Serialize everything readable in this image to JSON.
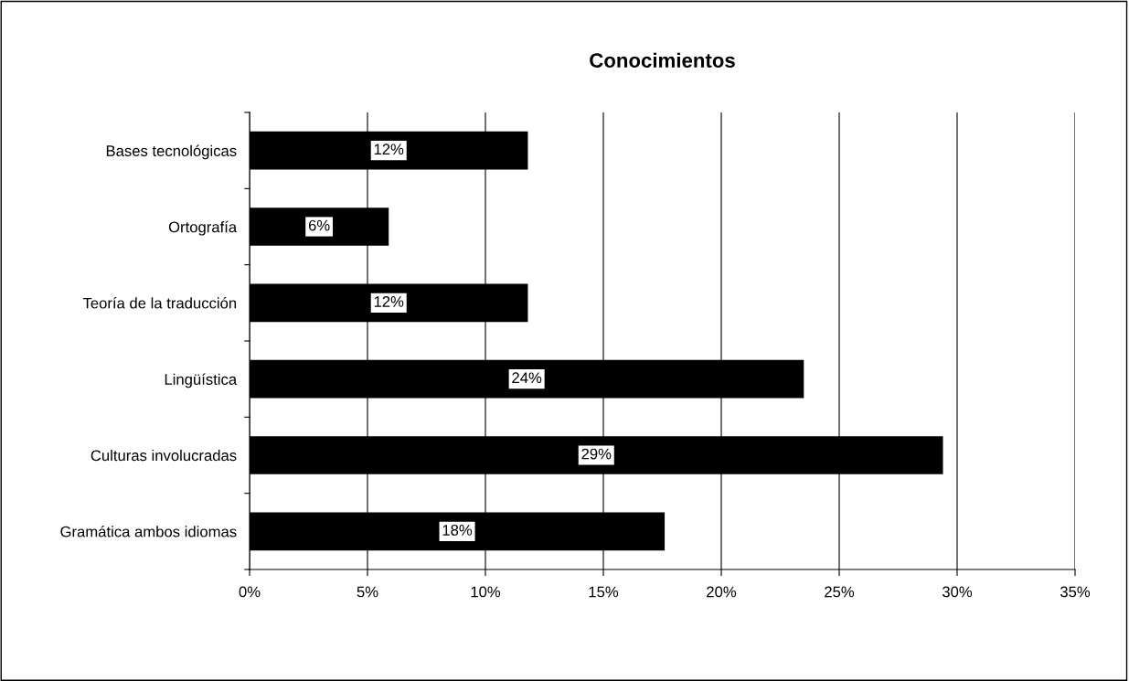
{
  "chart_data": {
    "type": "bar",
    "orientation": "horizontal",
    "title": "Conocimientos",
    "categories": [
      "Bases tecnológicas",
      "Ortografía",
      "Teoría de la traducción",
      "Lingüística",
      "Culturas involucradas",
      "Gramática ambos idiomas"
    ],
    "values": [
      11.8,
      5.9,
      11.8,
      23.5,
      29.4,
      17.6
    ],
    "value_labels": [
      "12%",
      "6%",
      "12%",
      "24%",
      "29%",
      "18%"
    ],
    "color": "#000000",
    "xlim": [
      0,
      35
    ],
    "xticks": [
      {
        "value": 0,
        "label": "0%"
      },
      {
        "value": 5,
        "label": "5%"
      },
      {
        "value": 10,
        "label": "10%"
      },
      {
        "value": 15,
        "label": "15%"
      },
      {
        "value": 20,
        "label": "20%"
      },
      {
        "value": 25,
        "label": "25%"
      },
      {
        "value": 30,
        "label": "30%"
      },
      {
        "value": 35,
        "label": "35%"
      }
    ],
    "grid": "x",
    "legend": false
  }
}
